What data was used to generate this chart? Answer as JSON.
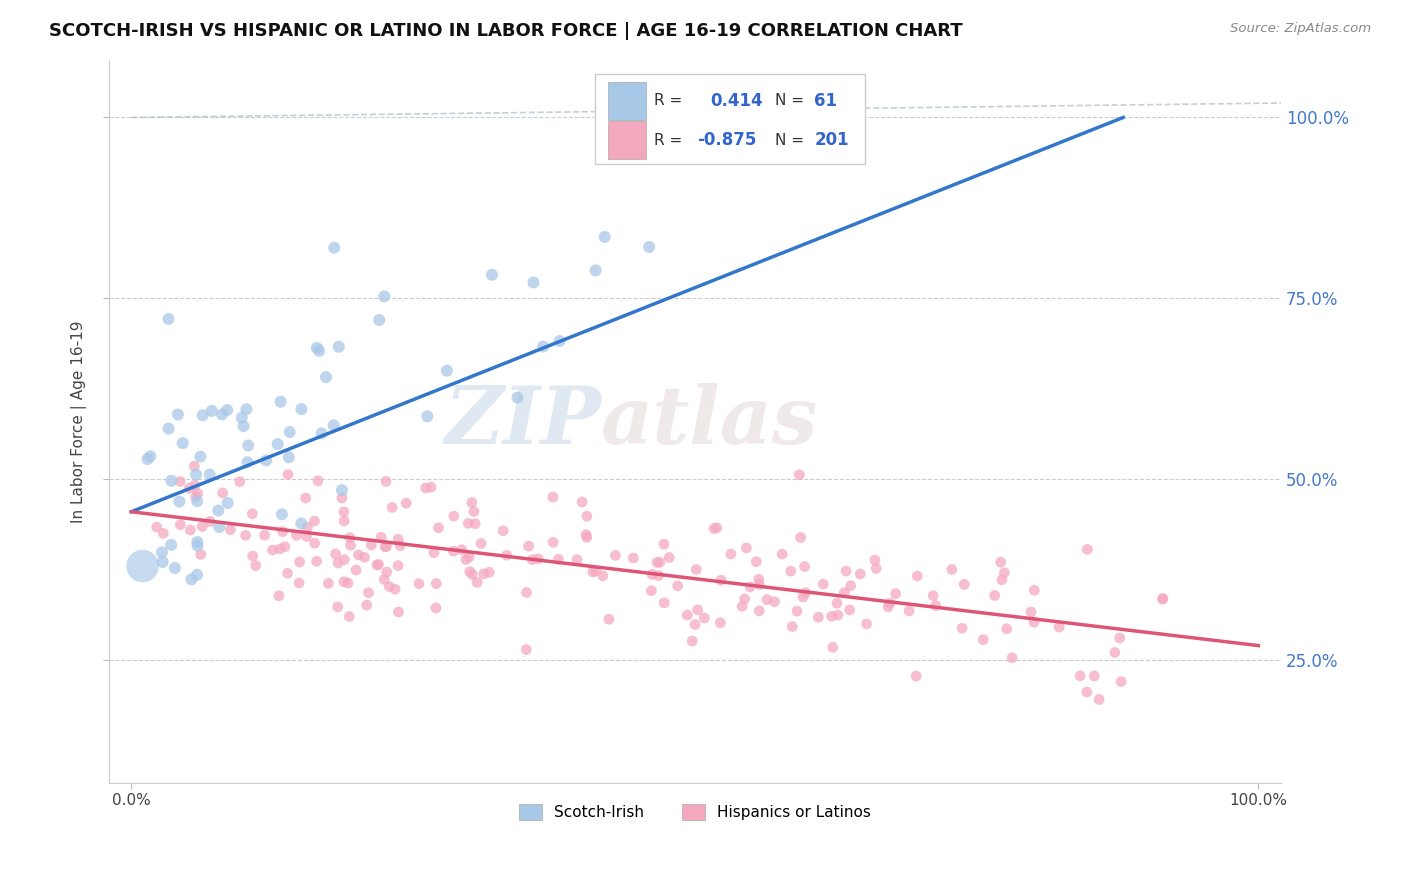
{
  "title": "SCOTCH-IRISH VS HISPANIC OR LATINO IN LABOR FORCE | AGE 16-19 CORRELATION CHART",
  "source_text": "Source: ZipAtlas.com",
  "ylabel": "In Labor Force | Age 16-19",
  "y_tick_labels_right": [
    "25.0%",
    "50.0%",
    "75.0%",
    "100.0%"
  ],
  "y_ticks_right": [
    0.25,
    0.5,
    0.75,
    1.0
  ],
  "xlim": [
    -0.02,
    1.02
  ],
  "ylim": [
    0.08,
    1.08
  ],
  "blue_R": 0.414,
  "blue_N": 61,
  "pink_R": -0.875,
  "pink_N": 201,
  "blue_color": "#a8c8e8",
  "pink_color": "#f4a8be",
  "blue_line_color": "#3377cc",
  "pink_line_color": "#dd5577",
  "dashed_line_color": "#aabbcc",
  "watermark_zip": "ZIP",
  "watermark_atlas": "atlas",
  "background_color": "#ffffff",
  "grid_color": "#cccccc",
  "blue_scatter_seed": 42,
  "pink_scatter_seed": 123,
  "blue_line_x0": 0.0,
  "blue_line_y0": 0.455,
  "blue_line_x1": 0.88,
  "blue_line_y1": 1.0,
  "pink_line_x0": 0.0,
  "pink_line_y0": 0.455,
  "pink_line_x1": 1.0,
  "pink_line_y1": 0.27,
  "dashed_line_x0": 0.0,
  "dashed_line_y0": 1.0,
  "dashed_line_x1": 1.02,
  "dashed_line_y1": 1.02
}
